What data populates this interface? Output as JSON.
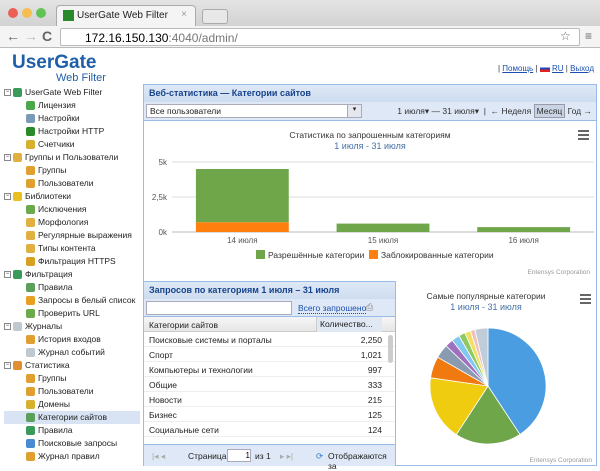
{
  "browser": {
    "tab_title": "UserGate Web Filter",
    "url_host": "172.16.150.130",
    "url_rest": ":4040/admin/"
  },
  "header": {
    "logo_top": "UserGate",
    "logo_bottom": "Web Filter",
    "links": {
      "help": "Помощь",
      "lang": "RU",
      "logout": "Выход"
    }
  },
  "sidebar": {
    "items": [
      {
        "label": "UserGate Web Filter",
        "level": 0,
        "color": "#3a9a5a"
      },
      {
        "label": "Лицензия",
        "level": 1,
        "color": "#4aa84a"
      },
      {
        "label": "Настройки",
        "level": 1,
        "color": "#7a9ab8"
      },
      {
        "label": "Настройки HTTP",
        "level": 1,
        "color": "#2a8a2a"
      },
      {
        "label": "Счетчики",
        "level": 1,
        "color": "#d8b030"
      },
      {
        "label": "Группы и Пользователи",
        "level": 0,
        "color": "#e0b040"
      },
      {
        "label": "Группы",
        "level": 1,
        "color": "#e0a030"
      },
      {
        "label": "Пользователи",
        "level": 1,
        "color": "#e0a030"
      },
      {
        "label": "Библиотеки",
        "level": 0,
        "color": "#e8c020"
      },
      {
        "label": "Исключения",
        "level": 1,
        "color": "#6aaa4a"
      },
      {
        "label": "Морфология",
        "level": 1,
        "color": "#e0b040"
      },
      {
        "label": "Регулярные выражения",
        "level": 1,
        "color": "#e0b040"
      },
      {
        "label": "Типы контента",
        "level": 1,
        "color": "#e0b040"
      },
      {
        "label": "Фильтрация HTTPS",
        "level": 1,
        "color": "#d8a020"
      },
      {
        "label": "Фильтрация",
        "level": 0,
        "color": "#3a9a5a"
      },
      {
        "label": "Правила",
        "level": 1,
        "color": "#5aa05a"
      },
      {
        "label": "Запросы в белый список",
        "level": 1,
        "color": "#e8a020"
      },
      {
        "label": "Проверить URL",
        "level": 1,
        "color": "#6aaa4a"
      },
      {
        "label": "Журналы",
        "level": 0,
        "color": "#c0c8d0"
      },
      {
        "label": "История входов",
        "level": 1,
        "color": "#e0a030"
      },
      {
        "label": "Журнал событий",
        "level": 1,
        "color": "#c0c8d0"
      },
      {
        "label": "Статистика",
        "level": 0,
        "color": "#e09030"
      },
      {
        "label": "Группы",
        "level": 1,
        "color": "#e0a030"
      },
      {
        "label": "Пользователи",
        "level": 1,
        "color": "#e0a030"
      },
      {
        "label": "Домены",
        "level": 1,
        "color": "#d8b030"
      },
      {
        "label": "Категории сайтов",
        "level": 1,
        "color": "#5aa05a",
        "selected": true
      },
      {
        "label": "Правила",
        "level": 1,
        "color": "#3a9a5a"
      },
      {
        "label": "Поисковые запросы",
        "level": 1,
        "color": "#4a8ad0"
      },
      {
        "label": "Журнал правил",
        "level": 1,
        "color": "#e0a030"
      }
    ]
  },
  "panel": {
    "title": "Веб-статистика — Категории сайтов",
    "user_select": "Все пользователи",
    "date_from": "1 июля",
    "date_to": "31 июля",
    "prev": "←",
    "week": "Неделя",
    "month": "Месяц",
    "year": "Год",
    "next": "→"
  },
  "grid": {
    "title": "Запросов по категориям 1 июля – 31 июля",
    "search_value": "",
    "total_label": "Всего запрошено",
    "columns": [
      "Категории сайтов",
      "Количество..."
    ],
    "rows": [
      [
        "Поисковые системы и порталы",
        "2,250"
      ],
      [
        "Спорт",
        "1,021"
      ],
      [
        "Компьютеры и технологии",
        "997"
      ],
      [
        "Общие",
        "333"
      ],
      [
        "Новости",
        "215"
      ],
      [
        "Бизнес",
        "125"
      ],
      [
        "Социальные сети",
        "124"
      ]
    ],
    "pager": {
      "page_label": "Страница",
      "page": "1",
      "of": "из 1",
      "status": "Отображаются за"
    }
  },
  "chart_data": [
    {
      "type": "bar",
      "stacked": true,
      "title": "Статистика по запрошенным категориям",
      "subtitle": "1 июля - 31 июля",
      "categories": [
        "14 июля",
        "15 июля",
        "16 июля"
      ],
      "yticks": [
        "0k",
        "2,5k",
        "5k"
      ],
      "ylim": [
        0,
        5000
      ],
      "grid": true,
      "legend": "bottom",
      "series": [
        {
          "name": "Разрешённые категории",
          "color": "#6fa64a",
          "values": [
            3800,
            600,
            350
          ]
        },
        {
          "name": "Заблокированные категории",
          "color": "#ff7f0e",
          "values": [
            700,
            0,
            0
          ]
        }
      ],
      "credit": "Entensys Corporation"
    },
    {
      "type": "pie",
      "title": "Самые популярные категории",
      "subtitle": "1 июля - 31 июля",
      "values": [
        2250,
        1021,
        997,
        333,
        215,
        125,
        124,
        100,
        90,
        70,
        200
      ],
      "colors": [
        "#4a9de0",
        "#6fa64a",
        "#f0cc10",
        "#f07a10",
        "#8a9ab0",
        "#a070c0",
        "#80c8f0",
        "#90c860",
        "#f0e060",
        "#f0c0c0",
        "#c0ccd8"
      ],
      "credit": "Entensys Corporation"
    }
  ]
}
